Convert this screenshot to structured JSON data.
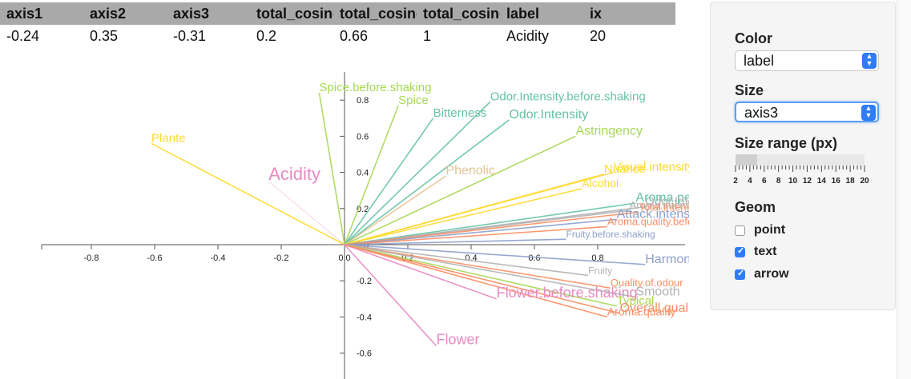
{
  "table": {
    "headers": [
      "axis1",
      "axis2",
      "axis3",
      "total_cosine",
      "total_cosine",
      "total_cosine",
      "label",
      "ix"
    ],
    "row": [
      "-0.24",
      "0.35",
      "-0.31",
      "0.2",
      "0.66",
      "1",
      "Acidity",
      "20"
    ]
  },
  "controls": {
    "color_label": "Color",
    "color_value": "label",
    "size_label": "Size",
    "size_value": "axis3",
    "size_range_label": "Size range (px)",
    "size_range_value": [
      2,
      5
    ],
    "size_range_ticks": [
      "2",
      "4",
      "6",
      "8",
      "10",
      "12",
      "14",
      "16",
      "18",
      "20"
    ],
    "geom_label": "Geom",
    "geoms": [
      {
        "label": "point",
        "checked": false
      },
      {
        "label": "text",
        "checked": true
      },
      {
        "label": "arrow",
        "checked": true
      }
    ]
  },
  "chart_data": {
    "type": "scatter",
    "subtype": "biplot-arrows",
    "xlim": [
      -0.95,
      1.05
    ],
    "ylim": [
      -0.72,
      0.92
    ],
    "x_ticks": [
      -0.8,
      -0.6,
      -0.4,
      -0.2,
      0.0,
      0.2,
      0.4,
      0.6,
      0.8
    ],
    "x_tick_labels": [
      "-0.8",
      "-0.6",
      "-0.4",
      "-0.2",
      "0.0",
      "0.2",
      "0.4",
      "0.6",
      "0.8"
    ],
    "y_ticks": [
      -0.6,
      -0.4,
      -0.2,
      0.0,
      0.2,
      0.4,
      0.6,
      0.8
    ],
    "y_tick_labels": [
      "-0.6",
      "-0.4",
      "-0.2",
      "0.0",
      "0.2",
      "0.4",
      "0.6",
      "0.8"
    ],
    "highlight": "Acidity",
    "points": [
      {
        "label": "Spice.before.shaking",
        "x": -0.08,
        "y": 0.84,
        "color": "#a6d854",
        "size": 15
      },
      {
        "label": "Spice",
        "x": 0.17,
        "y": 0.77,
        "color": "#a6d854",
        "size": 15
      },
      {
        "label": "Bitterness",
        "x": 0.28,
        "y": 0.7,
        "color": "#66c2a5",
        "size": 15
      },
      {
        "label": "Odor.Intensity.before.shaking",
        "x": 0.46,
        "y": 0.79,
        "color": "#66c2a5",
        "size": 15
      },
      {
        "label": "Odor.Intensity",
        "x": 0.52,
        "y": 0.69,
        "color": "#66c2a5",
        "size": 16
      },
      {
        "label": "Astringency",
        "x": 0.73,
        "y": 0.6,
        "color": "#a6d854",
        "size": 16
      },
      {
        "label": "Plante",
        "x": -0.61,
        "y": 0.56,
        "color": "#ffd92f",
        "size": 15
      },
      {
        "label": "Acidity",
        "x": -0.24,
        "y": 0.35,
        "color": "#e78ac3",
        "size": 22
      },
      {
        "label": "Phenolic",
        "x": 0.32,
        "y": 0.38,
        "color": "#e5c494",
        "size": 16
      },
      {
        "label": "Nuance",
        "x": 0.82,
        "y": 0.39,
        "color": "#ffd92f",
        "size": 15
      },
      {
        "label": "Visual.intensity",
        "x": 0.85,
        "y": 0.4,
        "color": "#ffd92f",
        "size": 15
      },
      {
        "label": "Alcohol",
        "x": 0.75,
        "y": 0.31,
        "color": "#ffd92f",
        "size": 14
      },
      {
        "label": "Aroma.persistency",
        "x": 0.92,
        "y": 0.23,
        "color": "#66c2a5",
        "size": 16
      },
      {
        "label": "Odor.Intensity",
        "x": 0.95,
        "y": 0.21,
        "color": "#b3b3b3",
        "size": 15
      },
      {
        "label": "Aroma.intensity",
        "x": 0.9,
        "y": 0.19,
        "color": "#b3b3b3",
        "size": 13
      },
      {
        "label": "Total.intensity",
        "x": 0.93,
        "y": 0.18,
        "color": "#fc8d62",
        "size": 13
      },
      {
        "label": "Attack.intensity",
        "x": 0.86,
        "y": 0.14,
        "color": "#8da0cb",
        "size": 16
      },
      {
        "label": "Aroma.quality.before",
        "x": 0.83,
        "y": 0.1,
        "color": "#fc8d62",
        "size": 13
      },
      {
        "label": "Fruity.before.shaking",
        "x": 0.7,
        "y": 0.03,
        "color": "#8da0cb",
        "size": 12
      },
      {
        "label": "Harmony",
        "x": 0.95,
        "y": -0.11,
        "color": "#8da0cb",
        "size": 16
      },
      {
        "label": "Fruity",
        "x": 0.77,
        "y": -0.17,
        "color": "#b3b3b3",
        "size": 12
      },
      {
        "label": "Quality.of.odour",
        "x": 0.84,
        "y": -0.24,
        "color": "#fc8d62",
        "size": 13
      },
      {
        "label": "Smooth",
        "x": 0.92,
        "y": -0.29,
        "color": "#b3b3b3",
        "size": 16
      },
      {
        "label": "Flower.before.shaking",
        "x": 0.48,
        "y": -0.3,
        "color": "#e78ac3",
        "size": 18
      },
      {
        "label": "Typical",
        "x": 0.86,
        "y": -0.34,
        "color": "#a6d854",
        "size": 15
      },
      {
        "label": "Overall.quality",
        "x": 0.87,
        "y": -0.38,
        "color": "#fc8d62",
        "size": 16
      },
      {
        "label": "Aroma.quality",
        "x": 0.83,
        "y": -0.4,
        "color": "#fc8d62",
        "size": 14
      },
      {
        "label": "Flower",
        "x": 0.29,
        "y": -0.56,
        "color": "#e78ac3",
        "size": 18
      }
    ]
  }
}
